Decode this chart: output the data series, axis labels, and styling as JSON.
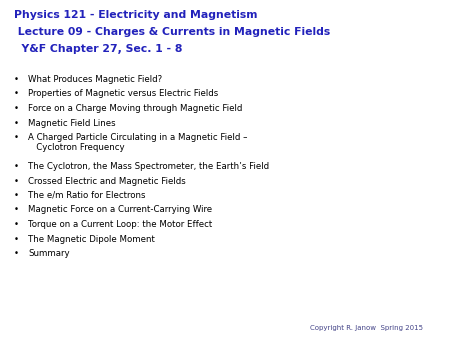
{
  "background_color": "#ffffff",
  "title_lines": [
    "Physics 121 - Electricity and Magnetism",
    " Lecture 09 - Charges & Currents in Magnetic Fields",
    "  Y&F Chapter 27, Sec. 1 - 8"
  ],
  "title_color": "#2222bb",
  "title_fontsize": 7.8,
  "bullet_items": [
    "What Produces Magnetic Field?",
    "Properties of Magnetic versus Electric Fields",
    "Force on a Charge Moving through Magnetic Field",
    "Magnetic Field Lines",
    "A Charged Particle Circulating in a Magnetic Field –\n   Cyclotron Frequency",
    "The Cyclotron, the Mass Spectrometer, the Earth’s Field",
    "Crossed Electric and Magnetic Fields",
    "The e/m Ratio for Electrons",
    "Magnetic Force on a Current-Carrying Wire",
    "Torque on a Current Loop: the Motor Effect",
    "The Magnetic Dipole Moment",
    "Summary"
  ],
  "bullet_color": "#000000",
  "bullet_fontsize": 6.2,
  "copyright_text": "Copyright R. Janow  Spring 2015",
  "copyright_color": "#444488",
  "copyright_fontsize": 5.0,
  "fig_width": 4.5,
  "fig_height": 3.38,
  "dpi": 100
}
